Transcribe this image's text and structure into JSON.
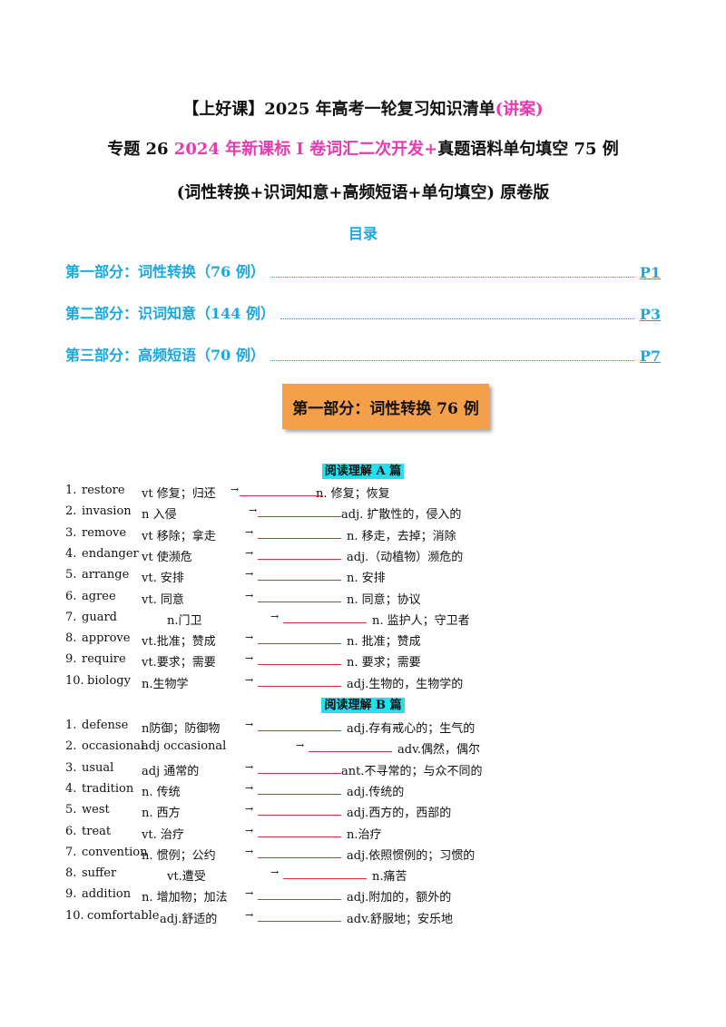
{
  "header": {
    "line1_main": "【上好课】2025 年高考一轮复习知识清单",
    "line1_accent": "(讲案)",
    "line2_prefix": "专题 26 ",
    "line2_accent": "2024 年新课标 I 卷词汇二次开发+",
    "line2_suffix": "真题语料单句填空 75 例",
    "line3": "(词性转换+识词知意+高频短语+单句填空) 原卷版"
  },
  "toc": {
    "heading": "目录",
    "items": [
      {
        "label": "第一部分：词性转换（76 例）",
        "page": "P1"
      },
      {
        "label": "第二部分：识词知意（144 例）",
        "page": "P3"
      },
      {
        "label": "第三部分：高频短语（70 例）",
        "page": "P7"
      }
    ]
  },
  "banner": "第一部分：词性转换 76 例",
  "sectionA": {
    "label": "阅读理解 A 篇",
    "rows": [
      {
        "num": "1.",
        "word": "restore",
        "pos": "vt 修复；归还",
        "arrow": "→",
        "target": "n. 修复；恢复"
      },
      {
        "num": "2.",
        "word": "invasion",
        "pos": "n 入侵",
        "arrow": "→",
        "target": "adj. 扩散性的，侵入的"
      },
      {
        "num": "3.",
        "word": "remove",
        "pos": "vt 移除；拿走",
        "arrow": "→",
        "target": "n. 移走，去掉；消除"
      },
      {
        "num": "4.",
        "word": "endanger",
        "pos": "vt 使濒危",
        "arrow": "→",
        "target": "adj.（动植物）濒危的"
      },
      {
        "num": "5.",
        "word": "arrange",
        "pos": "vt. 安排",
        "arrow": "→",
        "target": "n. 安排"
      },
      {
        "num": "6.",
        "word": "agree",
        "pos": "vt. 同意",
        "arrow": "→",
        "target": "n. 同意；协议"
      },
      {
        "num": "7.",
        "word": "guard",
        "pos": "n.门卫",
        "arrow": "→",
        "target": "n. 监护人；守卫者"
      },
      {
        "num": "8.",
        "word": "approve",
        "pos": "vt.批准；赞成",
        "arrow": "→",
        "target": "n. 批准；赞成"
      },
      {
        "num": "9.",
        "word": "require",
        "pos": "vt.要求；需要",
        "arrow": "→",
        "target": "n. 要求；需要"
      },
      {
        "num": "10.",
        "word": "biology",
        "pos": "n.生物学",
        "arrow": "→",
        "target": "adj.生物的，生物学的"
      }
    ]
  },
  "sectionB": {
    "label": "阅读理解 B 篇",
    "rows": [
      {
        "num": "1.",
        "word": "defense",
        "pos": "n防御；防御物",
        "arrow": "→",
        "target": "adj.存有戒心的；生气的"
      },
      {
        "num": "2.",
        "word": "occasional",
        "pos": "adj occasional",
        "arrow": "→",
        "target": "adv.偶然，偶尔"
      },
      {
        "num": "3.",
        "word": "usual",
        "pos": "adj 通常的",
        "arrow": "→",
        "target": "ant.不寻常的；与众不同的"
      },
      {
        "num": "4.",
        "word": "tradition",
        "pos": "n. 传统",
        "arrow": "→",
        "target": "adj.传统的"
      },
      {
        "num": "5.",
        "word": "west",
        "pos": "n. 西方",
        "arrow": "→",
        "target": "adj.西方的，西部的"
      },
      {
        "num": "6.",
        "word": "treat",
        "pos": "vt. 治疗",
        "arrow": "→",
        "target": "n.治疗"
      },
      {
        "num": "7.",
        "word": "convention",
        "pos": "n. 惯例；公约",
        "arrow": "→",
        "target": "adj.依照惯例的；习惯的"
      },
      {
        "num": "8.",
        "word": "suffer",
        "pos": "vt.遭受",
        "arrow": "→",
        "target": "n.痛苦"
      },
      {
        "num": "9.",
        "word": "addition",
        "pos": "n. 增加物；加法",
        "arrow": "→",
        "target": "adj.附加的，额外的"
      },
      {
        "num": "10.",
        "word": "comfortable",
        "pos": "adj.舒适的",
        "arrow": "→",
        "target": "adv.舒服地；安乐地"
      }
    ]
  }
}
